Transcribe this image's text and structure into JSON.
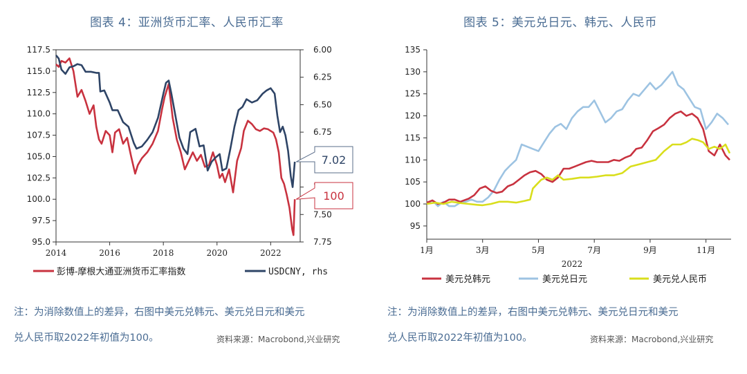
{
  "left_title": "图表 4：亚洲货币汇率、人民币汇率",
  "right_title": "图表 5：美元兑日元、韩元、人民币",
  "left_note_line1": "注：为消除数值上的差异，右图中美元兑韩元、美元兑日元和美元",
  "left_note_line2": "兑人民币取2022年初值为100。",
  "left_source": "资料来源：Macrobond,兴业研究",
  "right_note_line1": "注：为消除数值上的差异，右图中美元兑韩元、美元兑日元和美元",
  "right_note_line2": "兑人民币取2022年初值为100。",
  "right_source": "资料来源：Macrobond,兴业研究",
  "colors": {
    "red": "#c8323f",
    "navy": "#2e4466",
    "lightblue": "#9dc3e2",
    "yellow": "#d9de1c",
    "title": "#4a6c93"
  },
  "chart_data": [
    {
      "type": "line",
      "x_ticks": [
        "2014",
        "2016",
        "2018",
        "2020",
        "2022"
      ],
      "xlim": [
        2014,
        2023.1
      ],
      "y_left_ticks": [
        "117.5",
        "115.0",
        "112.5",
        "110.0",
        "107.5",
        "105.0",
        "102.5",
        "100.0",
        "97.5",
        "95.0"
      ],
      "ylim_left": [
        95.0,
        117.5
      ],
      "y_right_ticks": [
        "6.00",
        "6.25",
        "6.50",
        "6.75",
        "7.00",
        "7.25",
        "7.50",
        "7.75"
      ],
      "ylim_right": [
        6.0,
        7.75
      ],
      "right_axis_inverted": true,
      "series": [
        {
          "name": "彭博-摩根大通亚洲货币汇率指数",
          "axis": "left",
          "color": "#c8323f",
          "x": [
            2014.0,
            2014.1,
            2014.2,
            2014.35,
            2014.5,
            2014.65,
            2014.8,
            2014.95,
            2015.1,
            2015.25,
            2015.4,
            2015.5,
            2015.6,
            2015.7,
            2015.85,
            2016.0,
            2016.1,
            2016.2,
            2016.35,
            2016.5,
            2016.65,
            2016.8,
            2016.95,
            2017.05,
            2017.2,
            2017.4,
            2017.6,
            2017.8,
            2017.95,
            2018.05,
            2018.2,
            2018.35,
            2018.5,
            2018.65,
            2018.8,
            2018.95,
            2019.1,
            2019.25,
            2019.4,
            2019.55,
            2019.7,
            2019.85,
            2020.0,
            2020.1,
            2020.2,
            2020.3,
            2020.45,
            2020.6,
            2020.75,
            2020.9,
            2021.0,
            2021.15,
            2021.3,
            2021.45,
            2021.6,
            2021.75,
            2021.9,
            2022.0,
            2022.1,
            2022.2,
            2022.3,
            2022.4,
            2022.5,
            2022.6,
            2022.7,
            2022.8,
            2022.85,
            2022.9
          ],
          "values": [
            115.8,
            115.5,
            116.2,
            116.0,
            116.5,
            115.0,
            112.0,
            112.8,
            111.5,
            110.0,
            111.0,
            108.5,
            107.0,
            106.5,
            108.0,
            107.5,
            105.5,
            107.8,
            108.2,
            106.5,
            107.2,
            105.0,
            103.0,
            104.0,
            104.8,
            105.5,
            106.5,
            108.0,
            110.5,
            112.0,
            113.5,
            109.5,
            107.0,
            105.5,
            103.5,
            104.5,
            105.5,
            104.5,
            105.2,
            103.8,
            104.0,
            105.5,
            104.0,
            102.5,
            103.0,
            102.0,
            103.5,
            100.8,
            104.5,
            106.0,
            108.0,
            109.2,
            108.8,
            108.2,
            108.0,
            108.3,
            108.2,
            108.0,
            107.8,
            107.0,
            105.5,
            102.5,
            101.8,
            100.5,
            99.0,
            96.5,
            95.8,
            100.0
          ]
        },
        {
          "name": "USDCNY, rhs",
          "axis": "right",
          "color": "#2e4466",
          "x": [
            2014.0,
            2014.1,
            2014.2,
            2014.35,
            2014.5,
            2014.65,
            2014.8,
            2014.95,
            2015.1,
            2015.3,
            2015.5,
            2015.6,
            2015.65,
            2015.8,
            2016.0,
            2016.1,
            2016.3,
            2016.5,
            2016.7,
            2016.9,
            2017.0,
            2017.2,
            2017.4,
            2017.6,
            2017.8,
            2018.0,
            2018.1,
            2018.2,
            2018.3,
            2018.45,
            2018.6,
            2018.75,
            2018.9,
            2019.0,
            2019.2,
            2019.35,
            2019.5,
            2019.65,
            2019.8,
            2019.95,
            2020.1,
            2020.2,
            2020.35,
            2020.5,
            2020.65,
            2020.8,
            2020.95,
            2021.1,
            2021.3,
            2021.5,
            2021.7,
            2021.85,
            2022.0,
            2022.15,
            2022.25,
            2022.35,
            2022.45,
            2022.55,
            2022.65,
            2022.75,
            2022.82,
            2022.9
          ],
          "values": [
            6.05,
            6.08,
            6.18,
            6.22,
            6.16,
            6.15,
            6.13,
            6.14,
            6.2,
            6.2,
            6.21,
            6.21,
            6.38,
            6.37,
            6.48,
            6.55,
            6.55,
            6.66,
            6.7,
            6.85,
            6.9,
            6.88,
            6.82,
            6.75,
            6.62,
            6.4,
            6.3,
            6.28,
            6.4,
            6.6,
            6.8,
            6.9,
            6.95,
            6.75,
            6.72,
            6.88,
            6.87,
            7.1,
            7.02,
            6.98,
            6.95,
            7.1,
            7.08,
            6.9,
            6.7,
            6.55,
            6.52,
            6.45,
            6.48,
            6.46,
            6.4,
            6.37,
            6.35,
            6.4,
            6.6,
            6.75,
            6.7,
            6.78,
            6.92,
            7.15,
            7.25,
            7.02
          ]
        }
      ],
      "callouts": [
        {
          "text": "7.02",
          "series": "USDCNY, rhs"
        },
        {
          "text": "100",
          "series": "彭博-摩根大通亚洲货币汇率指数"
        }
      ]
    },
    {
      "type": "line",
      "x_ticks": [
        "1月",
        "3月",
        "5月",
        "7月",
        "9月",
        "11月"
      ],
      "xlabel": "2022",
      "xlim": [
        0,
        10.9
      ],
      "y_ticks": [
        "135",
        "130",
        "125",
        "120",
        "115",
        "110",
        "105",
        "100",
        "95"
      ],
      "ylim": [
        92,
        135
      ],
      "series": [
        {
          "name": "美元兑韩元",
          "color": "#c8323f",
          "x": [
            0.0,
            0.2,
            0.4,
            0.6,
            0.8,
            1.0,
            1.2,
            1.5,
            1.7,
            1.9,
            2.1,
            2.3,
            2.5,
            2.7,
            2.9,
            3.1,
            3.3,
            3.5,
            3.7,
            3.9,
            4.1,
            4.3,
            4.5,
            4.7,
            4.9,
            5.1,
            5.3,
            5.5,
            5.7,
            5.9,
            6.1,
            6.3,
            6.5,
            6.7,
            6.9,
            7.1,
            7.3,
            7.5,
            7.7,
            7.9,
            8.1,
            8.3,
            8.5,
            8.7,
            8.9,
            9.1,
            9.3,
            9.5,
            9.7,
            9.9,
            10.1,
            10.3,
            10.5,
            10.7,
            10.85
          ],
          "values": [
            100.3,
            100.8,
            100.0,
            100.3,
            101.0,
            101.0,
            100.5,
            101.2,
            102.0,
            103.5,
            104.0,
            103.0,
            102.5,
            102.8,
            104.0,
            104.5,
            105.5,
            106.5,
            107.2,
            107.5,
            106.8,
            105.5,
            105.0,
            106.0,
            108.0,
            108.0,
            108.5,
            109.0,
            109.5,
            109.8,
            109.5,
            109.5,
            109.5,
            110.0,
            109.8,
            110.5,
            111.0,
            112.5,
            112.8,
            114.5,
            116.5,
            117.2,
            118.0,
            119.5,
            120.5,
            121.0,
            120.0,
            120.5,
            119.5,
            117.0,
            112.0,
            111.0,
            113.5,
            111.0,
            110.0
          ]
        },
        {
          "name": "美元兑日元",
          "color": "#9dc3e2",
          "x": [
            0.0,
            0.2,
            0.4,
            0.6,
            0.8,
            1.0,
            1.2,
            1.4,
            1.6,
            1.8,
            2.0,
            2.2,
            2.4,
            2.6,
            2.8,
            3.0,
            3.2,
            3.4,
            3.6,
            3.8,
            4.0,
            4.2,
            4.4,
            4.6,
            4.8,
            5.0,
            5.2,
            5.4,
            5.6,
            5.8,
            6.0,
            6.2,
            6.4,
            6.6,
            6.8,
            7.0,
            7.2,
            7.4,
            7.6,
            7.8,
            8.0,
            8.2,
            8.4,
            8.6,
            8.8,
            9.0,
            9.2,
            9.4,
            9.6,
            9.8,
            10.0,
            10.2,
            10.4,
            10.6,
            10.8
          ],
          "values": [
            100.0,
            100.8,
            99.5,
            100.5,
            99.5,
            99.5,
            100.3,
            100.5,
            101.0,
            100.5,
            100.5,
            101.5,
            103.0,
            105.5,
            107.5,
            108.8,
            110.0,
            113.5,
            113.0,
            112.5,
            112.0,
            114.0,
            116.0,
            117.5,
            118.2,
            117.0,
            119.5,
            121.0,
            122.0,
            122.0,
            123.5,
            121.0,
            118.5,
            119.5,
            121.0,
            121.5,
            123.5,
            125.0,
            124.5,
            126.0,
            127.5,
            126.0,
            127.0,
            128.5,
            130.0,
            127.0,
            126.0,
            124.0,
            122.0,
            121.5,
            117.0,
            118.5,
            120.5,
            119.5,
            118.0
          ]
        },
        {
          "name": "美元兑人民币",
          "color": "#d9de1c",
          "x": [
            0.0,
            0.3,
            0.6,
            0.9,
            1.2,
            1.5,
            1.8,
            2.0,
            2.3,
            2.6,
            2.9,
            3.2,
            3.5,
            3.7,
            3.8,
            3.95,
            4.1,
            4.3,
            4.5,
            4.7,
            4.9,
            5.2,
            5.5,
            5.8,
            6.1,
            6.4,
            6.7,
            7.0,
            7.3,
            7.6,
            7.9,
            8.2,
            8.5,
            8.8,
            9.1,
            9.3,
            9.5,
            9.7,
            9.9,
            10.1,
            10.3,
            10.5,
            10.7,
            10.85
          ],
          "values": [
            100.0,
            100.3,
            100.0,
            100.5,
            100.2,
            100.0,
            99.8,
            99.7,
            100.0,
            100.5,
            100.5,
            100.3,
            100.7,
            101.0,
            103.5,
            104.5,
            105.5,
            106.0,
            105.5,
            106.5,
            105.5,
            105.7,
            106.0,
            106.0,
            106.2,
            106.5,
            106.5,
            107.0,
            108.5,
            109.0,
            109.5,
            110.0,
            112.0,
            113.5,
            113.5,
            114.0,
            114.8,
            114.5,
            114.0,
            112.5,
            113.0,
            112.5,
            113.5,
            111.5
          ]
        }
      ]
    }
  ]
}
